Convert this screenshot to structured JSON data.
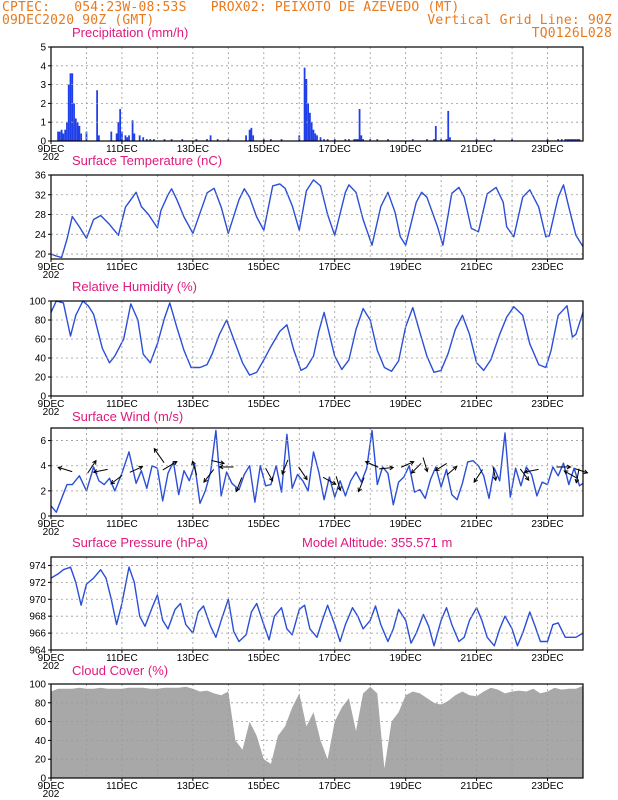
{
  "header": {
    "line1": "CPTEC:   054:23W-08:53S   PROX02: PEIXOTO DE AZEVEDO (MT)",
    "line2": "09DEC2020 90Z (GMT)",
    "grid_note": "Vertical Grid Line: 90Z",
    "code": "TQ0126L028"
  },
  "colors": {
    "line": "#2a4ed8",
    "bars": "#1f3fe8",
    "title": "#e0197d",
    "header": "#e87a1e",
    "cloud": "#a8a8a8"
  },
  "x_labels": [
    "9DEC",
    "11DEC",
    "13DEC",
    "15DEC",
    "17DEC",
    "19DEC",
    "21DEC",
    "23DEC"
  ],
  "x_stub": "202",
  "chart_data": [
    {
      "type": "bar",
      "title": "Precipitation (mm/h)",
      "x_range_days": [
        0,
        15
      ],
      "ylim": [
        0,
        5
      ],
      "yticks": [
        0,
        1,
        2,
        3,
        4,
        5
      ],
      "x": [
        0.2,
        0.25,
        0.3,
        0.35,
        0.4,
        0.45,
        0.5,
        0.55,
        0.6,
        0.65,
        0.7,
        0.75,
        0.8,
        0.85,
        1.0,
        1.3,
        1.35,
        1.7,
        1.85,
        1.9,
        1.95,
        2.0,
        2.1,
        2.15,
        2.2,
        2.3,
        2.35,
        2.5,
        2.6,
        2.7,
        2.8,
        2.9,
        3.2,
        3.4,
        3.7,
        4.1,
        4.4,
        4.5,
        4.7,
        5.0,
        5.5,
        5.6,
        5.65,
        5.7,
        6.0,
        6.2,
        6.5,
        7.0,
        7.15,
        7.2,
        7.25,
        7.3,
        7.35,
        7.4,
        7.45,
        7.5,
        7.6,
        7.7,
        7.8,
        8.0,
        8.3,
        8.4,
        8.55,
        8.6,
        8.65,
        8.7,
        8.75,
        8.8,
        9.0,
        9.2,
        9.5,
        10.2,
        10.6,
        10.8,
        10.85,
        11.0,
        11.15,
        11.2,
        11.25,
        12.0,
        12.5,
        13.0,
        14.0,
        14.3,
        14.4,
        14.5,
        14.55,
        14.6,
        14.65,
        14.7,
        14.75,
        14.8,
        14.85,
        14.9
      ],
      "values": [
        0.5,
        0.5,
        0.6,
        0.4,
        0.6,
        1.0,
        3.0,
        3.6,
        3.6,
        2.0,
        1.2,
        1.0,
        0.8,
        0.4,
        0.5,
        2.7,
        0.3,
        0.5,
        0.4,
        1.0,
        1.7,
        0.5,
        0.3,
        0.2,
        0.3,
        1.1,
        0.4,
        0.3,
        0.2,
        0.1,
        0.1,
        0.1,
        0.1,
        0.1,
        0.1,
        0.1,
        0.1,
        0.3,
        0.1,
        0.1,
        0.3,
        0.6,
        0.7,
        0.3,
        0.1,
        0.1,
        0.1,
        0.3,
        3.9,
        3.3,
        2.0,
        1.5,
        1.0,
        0.6,
        0.4,
        0.3,
        0.2,
        0.1,
        0.1,
        0.1,
        0.1,
        0.1,
        0.1,
        0.1,
        0.1,
        1.7,
        0.3,
        0.1,
        0.1,
        0.1,
        0.1,
        0.1,
        0.1,
        0.1,
        0.8,
        0.1,
        0.1,
        1.6,
        0.2,
        0.1,
        0.1,
        0.1,
        0.1,
        0.1,
        0.1,
        0.1,
        0.1,
        0.1,
        0.1,
        0.1,
        0.1,
        0.1,
        0.1,
        0.1
      ],
      "bar_fill": "#1f3fe8"
    },
    {
      "type": "line",
      "title": "Surface Temperature (nC)",
      "x_range_days": [
        0,
        15
      ],
      "ylim": [
        19,
        36
      ],
      "yticks": [
        20,
        24,
        28,
        32,
        36
      ],
      "x": [
        0,
        0.15,
        0.3,
        0.45,
        0.6,
        0.8,
        1.0,
        1.2,
        1.4,
        1.65,
        1.9,
        2.1,
        2.4,
        2.55,
        2.75,
        3.0,
        3.1,
        3.3,
        3.4,
        3.55,
        3.75,
        4.0,
        4.4,
        4.6,
        4.8,
        5.0,
        5.3,
        5.45,
        5.6,
        5.8,
        6.0,
        6.25,
        6.45,
        6.6,
        6.8,
        7.0,
        7.2,
        7.4,
        7.6,
        7.8,
        8.0,
        8.3,
        8.4,
        8.6,
        8.8,
        9.05,
        9.3,
        9.5,
        9.7,
        9.85,
        10.0,
        10.3,
        10.45,
        10.6,
        10.9,
        11.05,
        11.3,
        11.5,
        11.65,
        11.85,
        12.05,
        12.3,
        12.55,
        12.75,
        12.85,
        13.05,
        13.3,
        13.5,
        13.75,
        13.95,
        14.05,
        14.3,
        14.45,
        14.6,
        14.8,
        15.0
      ],
      "values": [
        20,
        19.6,
        19.3,
        23,
        27.6,
        25.5,
        23.2,
        27,
        27.8,
        26,
        23.8,
        29.5,
        32.5,
        29.6,
        28,
        25.3,
        28.8,
        32,
        33.2,
        31,
        27.5,
        24.2,
        32.4,
        33.3,
        29.5,
        24.2,
        31,
        33.2,
        31.5,
        27.5,
        24.8,
        33.8,
        34.2,
        33.3,
        29.8,
        24.8,
        32.8,
        35,
        33.8,
        28,
        23.8,
        32.5,
        34,
        32.5,
        27,
        21.8,
        29.6,
        32.5,
        28.5,
        23.5,
        21.8,
        30.5,
        32.5,
        31.5,
        25.5,
        21.8,
        32.3,
        33.5,
        31.5,
        25.2,
        24.5,
        32.2,
        33.5,
        30.5,
        25.5,
        23.5,
        31.5,
        33,
        29.5,
        23.5,
        23.7,
        31.5,
        34,
        29.5,
        23.8,
        21.5
      ],
      "line_color": "#2a4ed8"
    },
    {
      "type": "line",
      "title": "Relative Humidity (%)",
      "x_range_days": [
        0,
        15
      ],
      "ylim": [
        0,
        100
      ],
      "yticks": [
        0,
        20,
        40,
        60,
        80,
        100
      ],
      "x": [
        0,
        0.15,
        0.35,
        0.55,
        0.7,
        0.9,
        1.05,
        1.2,
        1.45,
        1.65,
        1.8,
        2.05,
        2.25,
        2.45,
        2.6,
        2.8,
        3.0,
        3.2,
        3.35,
        3.55,
        3.75,
        3.95,
        4.2,
        4.4,
        4.55,
        4.75,
        4.95,
        5.2,
        5.4,
        5.6,
        5.8,
        6.0,
        6.2,
        6.45,
        6.65,
        6.85,
        7.05,
        7.2,
        7.4,
        7.55,
        7.7,
        8.0,
        8.2,
        8.4,
        8.6,
        8.8,
        9.0,
        9.2,
        9.4,
        9.6,
        9.8,
        10.0,
        10.2,
        10.4,
        10.6,
        10.8,
        11.0,
        11.2,
        11.4,
        11.6,
        11.8,
        12.0,
        12.2,
        12.4,
        12.65,
        12.85,
        13.05,
        13.3,
        13.5,
        13.75,
        13.95,
        14.1,
        14.3,
        14.55,
        14.7,
        14.8,
        15.0
      ],
      "values": [
        88,
        100,
        98,
        63,
        85,
        100,
        95,
        86,
        50,
        35,
        42,
        60,
        97,
        80,
        44,
        35,
        55,
        82,
        98,
        72,
        48,
        30,
        30,
        33,
        45,
        65,
        80,
        55,
        35,
        22,
        25,
        38,
        52,
        68,
        75,
        48,
        27,
        30,
        42,
        68,
        88,
        42,
        28,
        38,
        70,
        92,
        80,
        48,
        30,
        26,
        37,
        73,
        93,
        67,
        42,
        25,
        27,
        45,
        70,
        85,
        65,
        35,
        27,
        38,
        65,
        83,
        94,
        85,
        55,
        33,
        30,
        48,
        85,
        95,
        62,
        65,
        88
      ],
      "line_color": "#2a4ed8"
    },
    {
      "type": "line",
      "title": "Surface Wind (m/s)",
      "x_range_days": [
        0,
        15
      ],
      "ylim": [
        0,
        7
      ],
      "yticks": [
        0,
        2,
        4,
        6
      ],
      "x": [
        0,
        0.15,
        0.3,
        0.45,
        0.6,
        0.8,
        1.0,
        1.2,
        1.35,
        1.5,
        1.65,
        1.8,
        2.0,
        2.2,
        2.4,
        2.55,
        2.7,
        2.85,
        3.0,
        3.15,
        3.3,
        3.45,
        3.6,
        3.75,
        3.9,
        4.05,
        4.2,
        4.35,
        4.5,
        4.65,
        4.8,
        4.95,
        5.1,
        5.3,
        5.45,
        5.6,
        5.75,
        5.9,
        6.05,
        6.2,
        6.35,
        6.5,
        6.65,
        6.8,
        6.95,
        7.1,
        7.25,
        7.4,
        7.55,
        7.7,
        7.85,
        8.0,
        8.15,
        8.3,
        8.45,
        8.6,
        8.75,
        8.9,
        9.05,
        9.2,
        9.35,
        9.5,
        9.65,
        9.8,
        9.95,
        10.1,
        10.25,
        10.4,
        10.55,
        10.7,
        10.85,
        11.0,
        11.15,
        11.3,
        11.45,
        11.6,
        11.75,
        11.9,
        12.05,
        12.2,
        12.35,
        12.5,
        12.65,
        12.8,
        12.95,
        13.1,
        13.25,
        13.4,
        13.55,
        13.7,
        13.85,
        14.0,
        14.15,
        14.3,
        14.45,
        14.6,
        14.75,
        14.9,
        15.0
      ],
      "values": [
        0.8,
        0.3,
        1.4,
        2.5,
        2.5,
        3.2,
        2.0,
        3.9,
        2.8,
        2.5,
        3.0,
        2.0,
        3.4,
        5.1,
        2.6,
        3.6,
        2.2,
        4.0,
        3.8,
        1.2,
        3.4,
        4.3,
        1.7,
        3.6,
        2.8,
        4.1,
        1.0,
        2.0,
        3.5,
        6.8,
        1.6,
        3.5,
        2.6,
        2.1,
        3.3,
        4.0,
        1.1,
        4.0,
        2.4,
        2.5,
        4.0,
        1.9,
        6.5,
        2.2,
        3.3,
        2.8,
        2.0,
        5.1,
        3.5,
        1.3,
        3.1,
        1.5,
        2.8,
        1.6,
        2.8,
        3.5,
        2.7,
        3.8,
        6.8,
        2.5,
        3.9,
        3.4,
        0.9,
        2.7,
        3.1,
        4.0,
        1.9,
        2.1,
        1.4,
        2.9,
        3.9,
        2.3,
        3.7,
        1.7,
        1.3,
        2.6,
        4.3,
        4.4,
        4.0,
        3.2,
        1.4,
        3.8,
        2.8,
        6.6,
        1.5,
        3.8,
        2.4,
        3.9,
        3.3,
        1.6,
        2.7,
        2.5,
        3.9,
        3.2,
        4.2,
        2.5,
        3.8,
        2.4,
        2.6
      ],
      "line_color": "#2a4ed8",
      "wind_vectors": [
        {
          "x": 0.4,
          "y": 3.7,
          "u": -1,
          "v": 0.3
        },
        {
          "x": 1.15,
          "y": 3.9,
          "u": 0.6,
          "v": 0.9
        },
        {
          "x": 1.4,
          "y": 3.6,
          "u": -1,
          "v": -0.2
        },
        {
          "x": 1.85,
          "y": 2.9,
          "u": -0.8,
          "v": -0.6
        },
        {
          "x": 2.4,
          "y": 3.7,
          "u": 0.9,
          "v": 0.4
        },
        {
          "x": 3.05,
          "y": 4.8,
          "u": -0.7,
          "v": 1.0
        },
        {
          "x": 3.35,
          "y": 4.0,
          "u": 1.0,
          "v": 0.6
        },
        {
          "x": 4.05,
          "y": 3.8,
          "u": -0.3,
          "v": 1.0
        },
        {
          "x": 4.45,
          "y": 3.2,
          "u": -0.7,
          "v": -0.9
        },
        {
          "x": 4.7,
          "y": 4.3,
          "u": 0.9,
          "v": -0.2
        },
        {
          "x": 4.95,
          "y": 3.9,
          "u": -1,
          "v": 0
        },
        {
          "x": 5.3,
          "y": 2.5,
          "u": -0.4,
          "v": -1.0
        },
        {
          "x": 6.15,
          "y": 3.3,
          "u": 0.5,
          "v": -0.9
        },
        {
          "x": 6.6,
          "y": 3.9,
          "u": -0.4,
          "v": -1.0
        },
        {
          "x": 7.1,
          "y": 3.4,
          "u": 0.6,
          "v": -0.9
        },
        {
          "x": 7.85,
          "y": 2.8,
          "u": 0.9,
          "v": -0.5
        },
        {
          "x": 8.1,
          "y": 2.6,
          "u": 0.3,
          "v": -1.0
        },
        {
          "x": 8.75,
          "y": 2.5,
          "u": -0.4,
          "v": -1.0
        },
        {
          "x": 9.05,
          "y": 4.1,
          "u": -0.9,
          "v": 0.4
        },
        {
          "x": 9.45,
          "y": 3.8,
          "u": 1.0,
          "v": 0.1
        },
        {
          "x": 10.05,
          "y": 4.1,
          "u": 0.9,
          "v": 0.4
        },
        {
          "x": 10.3,
          "y": 3.8,
          "u": -0.7,
          "v": -0.7
        },
        {
          "x": 10.55,
          "y": 4.1,
          "u": 0.3,
          "v": -1.0
        },
        {
          "x": 11.0,
          "y": 3.9,
          "u": -0.8,
          "v": -0.5
        },
        {
          "x": 11.3,
          "y": 3.6,
          "u": 0.7,
          "v": 0.6
        },
        {
          "x": 12.05,
          "y": 3.2,
          "u": -0.6,
          "v": -0.9
        },
        {
          "x": 12.5,
          "y": 3.4,
          "u": 0.2,
          "v": -1.0
        },
        {
          "x": 13.35,
          "y": 3.3,
          "u": 0.6,
          "v": -0.8
        },
        {
          "x": 13.55,
          "y": 3.6,
          "u": -1,
          "v": -0.2
        },
        {
          "x": 14.45,
          "y": 3.9,
          "u": 1.0,
          "v": 0
        },
        {
          "x": 14.65,
          "y": 3.3,
          "u": -0.9,
          "v": 0.5
        },
        {
          "x": 14.85,
          "y": 3.2,
          "u": -0.2,
          "v": -1.0
        },
        {
          "x": 14.95,
          "y": 3.6,
          "u": 0.9,
          "v": -0.3
        }
      ]
    },
    {
      "type": "line",
      "title": "Surface Pressure (hPa)",
      "model_altitude": "Model Altitude: 355.571  m",
      "x_range_days": [
        0,
        15
      ],
      "ylim": [
        964,
        975
      ],
      "yticks": [
        964,
        966,
        968,
        970,
        972,
        974
      ],
      "x": [
        0,
        0.2,
        0.35,
        0.55,
        0.7,
        0.85,
        1.0,
        1.2,
        1.4,
        1.55,
        1.7,
        1.85,
        2.0,
        2.2,
        2.35,
        2.5,
        2.65,
        2.85,
        3.0,
        3.15,
        3.3,
        3.5,
        3.65,
        3.8,
        4.0,
        4.15,
        4.3,
        4.5,
        4.65,
        4.8,
        5.0,
        5.15,
        5.3,
        5.5,
        5.65,
        5.8,
        6.0,
        6.15,
        6.3,
        6.5,
        6.65,
        6.8,
        7.0,
        7.15,
        7.3,
        7.5,
        7.65,
        7.8,
        8.0,
        8.15,
        8.3,
        8.5,
        8.65,
        8.8,
        9.0,
        9.15,
        9.3,
        9.5,
        9.65,
        9.8,
        10.0,
        10.15,
        10.3,
        10.5,
        10.65,
        10.8,
        11.0,
        11.15,
        11.3,
        11.5,
        11.65,
        11.8,
        12.0,
        12.15,
        12.3,
        12.5,
        12.65,
        12.8,
        13.0,
        13.15,
        13.3,
        13.5,
        13.65,
        13.8,
        14.0,
        14.15,
        14.3,
        14.5,
        14.65,
        14.8,
        15.0
      ],
      "values": [
        972.5,
        973.0,
        973.5,
        973.8,
        972.0,
        969.3,
        971.8,
        972.5,
        973.5,
        972.5,
        970.0,
        967.0,
        969.5,
        973.8,
        972.0,
        968.0,
        966.8,
        969.0,
        970.5,
        967.5,
        966.5,
        968.8,
        969.5,
        967.0,
        966.0,
        968.5,
        969.2,
        966.8,
        965.5,
        967.5,
        970.0,
        966.2,
        965.0,
        965.8,
        968.5,
        969.5,
        967.0,
        965.2,
        968.0,
        969.0,
        966.5,
        965.8,
        968.8,
        969.3,
        966.5,
        965.5,
        967.5,
        969.3,
        967.0,
        965.0,
        967.0,
        969.0,
        968.0,
        966.5,
        967.5,
        969.2,
        967.0,
        965.0,
        966.5,
        968.8,
        967.5,
        964.8,
        966.0,
        968.2,
        966.8,
        964.5,
        967.5,
        969.0,
        967.0,
        965.0,
        965.5,
        967.5,
        969.0,
        967.5,
        965.5,
        964.5,
        966.5,
        968.0,
        966.5,
        964.5,
        966.0,
        968.5,
        966.8,
        965.0,
        965.0,
        967.0,
        967.2,
        965.5,
        965.5,
        965.5,
        966.0
      ],
      "line_color": "#2a4ed8"
    },
    {
      "type": "area",
      "title": "Cloud Cover (%)",
      "x_range_days": [
        0,
        15
      ],
      "ylim": [
        0,
        100
      ],
      "yticks": [
        0,
        20,
        40,
        60,
        80,
        100
      ],
      "x": [
        0,
        0.2,
        0.4,
        0.6,
        0.8,
        1.0,
        1.2,
        1.4,
        1.6,
        1.8,
        2.0,
        2.2,
        2.4,
        2.6,
        2.8,
        3.0,
        3.2,
        3.4,
        3.6,
        3.8,
        4.0,
        4.2,
        4.4,
        4.6,
        4.8,
        5.0,
        5.2,
        5.4,
        5.6,
        5.8,
        6.0,
        6.2,
        6.4,
        6.6,
        6.8,
        7.0,
        7.2,
        7.4,
        7.6,
        7.8,
        8.0,
        8.2,
        8.4,
        8.6,
        8.8,
        9.0,
        9.2,
        9.4,
        9.6,
        9.8,
        10.0,
        10.2,
        10.4,
        10.6,
        10.8,
        11.0,
        11.2,
        11.4,
        11.6,
        11.8,
        12.0,
        12.2,
        12.4,
        12.6,
        12.8,
        13.0,
        13.2,
        13.4,
        13.6,
        13.8,
        14.0,
        14.2,
        14.4,
        14.6,
        14.8,
        15.0
      ],
      "values": [
        92,
        95,
        95,
        95,
        96,
        95,
        95,
        96,
        95,
        95,
        95,
        96,
        96,
        96,
        95,
        95,
        96,
        96,
        96,
        97,
        95,
        92,
        93,
        90,
        88,
        92,
        40,
        30,
        60,
        45,
        20,
        15,
        45,
        55,
        75,
        90,
        55,
        70,
        40,
        20,
        60,
        75,
        85,
        50,
        90,
        97,
        90,
        10,
        60,
        70,
        88,
        92,
        90,
        85,
        80,
        78,
        82,
        88,
        92,
        88,
        87,
        92,
        96,
        94,
        90,
        92,
        93,
        92,
        95,
        90,
        92,
        96,
        94,
        95,
        95,
        98
      ],
      "fill": "#a8a8a8"
    }
  ]
}
